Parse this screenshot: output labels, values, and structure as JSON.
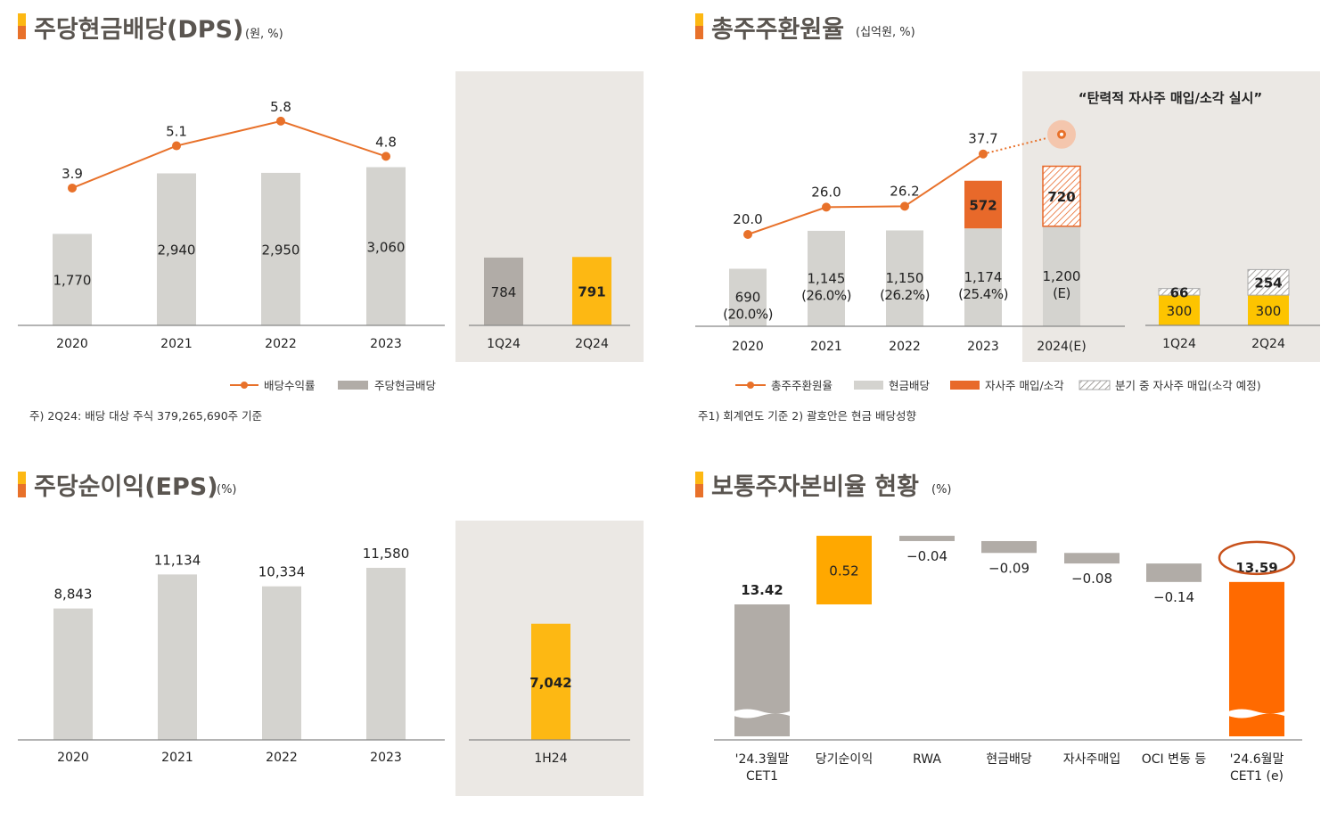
{
  "colors": {
    "line": "#e8712a",
    "bar_gray": "#d4d3cf",
    "bar_dark_gray": "#b1aca7",
    "yellow": "#fdb813",
    "buyback_orange": "#e8692a",
    "waterfall_orange": "#ff6a00",
    "waterfall_yellow": "#ffa800",
    "panel_bg": "#ebe8e4",
    "quote_blue": "#1b7cc7"
  },
  "chart_data": [
    {
      "type": "bar+line",
      "title": "주당현금배당(DPS)",
      "unit": "(원, %)",
      "categories": [
        "2020",
        "2021",
        "2022",
        "2023"
      ],
      "series": [
        {
          "name": "주당현금배당",
          "values": [
            1770,
            2940,
            2950,
            3060
          ],
          "labels": [
            "1,770",
            "2,940",
            "2,950",
            "3,060"
          ]
        },
        {
          "name": "배당수익률",
          "values": [
            3.9,
            5.1,
            5.8,
            4.8
          ],
          "labels": [
            "3.9",
            "5.1",
            "5.8",
            "4.8"
          ]
        }
      ],
      "quarterly": {
        "categories": [
          "1Q24",
          "2Q24"
        ],
        "values": [
          784,
          791
        ],
        "labels": [
          "784",
          "791"
        ]
      },
      "legend": [
        "배당수익률",
        "주당현금배당"
      ],
      "note": "주) 2Q24: 배당 대상 주식 379,265,690주 기준"
    },
    {
      "type": "stacked-bar+line",
      "title": "총주주환원율",
      "unit": "(십억원, %)",
      "quote": "“탄력적 자사주 매입/소각 실시”",
      "categories": [
        "2020",
        "2021",
        "2022",
        "2023",
        "2024(E)"
      ],
      "series": [
        {
          "name": "현금배당",
          "values": [
            690,
            1145,
            1150,
            1174,
            1200
          ],
          "labels": [
            "690",
            "1,145",
            "1,150",
            "1,174",
            "1,200"
          ],
          "sublabels": [
            "(20.0%)",
            "(26.0%)",
            "(26.2%)",
            "(25.4%)",
            "(E)"
          ]
        },
        {
          "name": "자사주 매입/소각",
          "values": [
            0,
            0,
            0,
            572,
            720
          ],
          "labels": [
            "",
            "",
            "",
            "572",
            "720"
          ]
        },
        {
          "name": "총주주환원율",
          "values": [
            20.0,
            26.0,
            26.2,
            37.7,
            42
          ],
          "labels": [
            "20.0",
            "26.0",
            "26.2",
            "37.7",
            ""
          ]
        }
      ],
      "quarterly": {
        "categories": [
          "1Q24",
          "2Q24"
        ],
        "buyback": [
          300,
          300
        ],
        "buyback_labels": [
          "300",
          "300"
        ],
        "in_quarter": [
          66,
          254
        ],
        "in_quarter_labels": [
          "66",
          "254"
        ]
      },
      "legend": [
        "총주주환원율",
        "현금배당",
        "자사주 매입/소각",
        "분기 중 자사주 매입(소각 예정)"
      ],
      "note": "주1) 회계연도 기준    2) 괄호안은 현금 배당성향"
    },
    {
      "type": "bar",
      "title": "주당순이익(EPS)",
      "unit": "(%)",
      "categories": [
        "2020",
        "2021",
        "2022",
        "2023"
      ],
      "values": [
        8843,
        11134,
        10334,
        11580
      ],
      "labels": [
        "8,843",
        "11,134",
        "10,334",
        "11,580"
      ],
      "half": {
        "categories": [
          "1H24"
        ],
        "values": [
          7042
        ],
        "labels": [
          "7,042"
        ]
      }
    },
    {
      "type": "waterfall",
      "title": "보통주자본비율 현황",
      "unit": "(%)",
      "categories": [
        [
          "'24.3월말",
          "CET1"
        ],
        [
          "당기순이익"
        ],
        [
          "RWA"
        ],
        [
          "현금배당"
        ],
        [
          "자사주매입"
        ],
        [
          "OCI 변동 등"
        ],
        [
          "'24.6월말",
          "CET1 (e)"
        ]
      ],
      "values": [
        13.42,
        0.52,
        -0.04,
        -0.09,
        -0.08,
        -0.14,
        13.59
      ],
      "labels": [
        "13.42",
        "0.52",
        "−0.04",
        "−0.09",
        "−0.08",
        "−0.14",
        "13.59"
      ],
      "broken_axis": true
    }
  ]
}
